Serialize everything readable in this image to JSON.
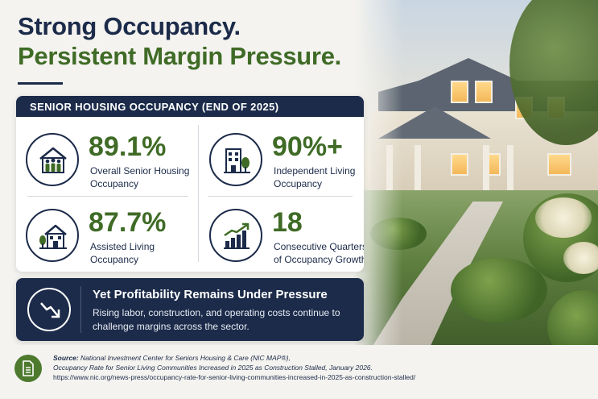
{
  "headline": {
    "line1": "Strong Occupancy.",
    "line2": "Persistent Margin Pressure."
  },
  "panel": {
    "title": "SENIOR HOUSING OCCUPANCY (END OF 2025)",
    "stats": [
      {
        "value": "89.1%",
        "label": "Overall Senior Housing Occupancy",
        "icon": "family-house-icon"
      },
      {
        "value": "90%+",
        "label": "Independent Living Occupancy",
        "icon": "building-tree-icon"
      },
      {
        "value": "87.7%",
        "label": "Assisted Living Occupancy",
        "icon": "home-tree-icon"
      },
      {
        "value": "18",
        "label": "Consecutive Quarters of Occupancy Growth",
        "icon": "bar-chart-growth-icon"
      }
    ]
  },
  "banner": {
    "title": "Yet Profitability Remains Under Pressure",
    "body": "Rising labor, construction, and operating costs continue to challenge margins across the sector.",
    "icon": "trend-down-icon"
  },
  "source": {
    "lead": "Source:",
    "line1": " National Investment Center for Seniors Housing & Care (NIC MAP®),",
    "line2": "Occupancy Rate for Senior Living Communities Increased in 2025 as Construction Stalled, January 2026.",
    "url": "https://www.nic.org/news-press/occupancy-rate-for-senior-living-communities-increased-in-2025-as-construction-stalled/",
    "icon": "document-icon"
  },
  "colors": {
    "navy": "#1c2b4a",
    "green": "#3f6b26",
    "background": "#f4f3ef"
  }
}
